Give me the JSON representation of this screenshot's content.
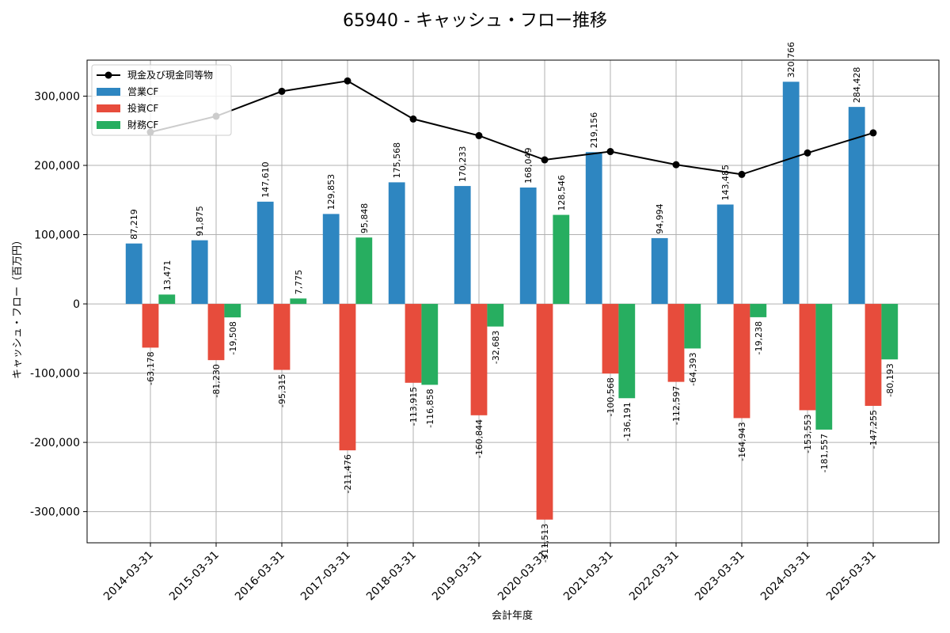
{
  "chart_data": {
    "type": "bar",
    "title": "65940 - キャッシュ・フロー推移",
    "xlabel": "会計年度",
    "ylabel": "キャッシュ・フロー（百万円）",
    "ylim": [
      -345000,
      352000
    ],
    "yticks": [
      -300000,
      -200000,
      -100000,
      0,
      100000,
      200000,
      300000
    ],
    "ytick_labels": [
      "-300,000",
      "-200,000",
      "-100,000",
      "0",
      "100,000",
      "200,000",
      "300,000"
    ],
    "grid": true,
    "legend_position": "top-left",
    "categories": [
      "2014-03-31",
      "2015-03-31",
      "2016-03-31",
      "2017-03-31",
      "2018-03-31",
      "2019-03-31",
      "2020-03-31",
      "2021-03-31",
      "2022-03-31",
      "2023-03-31",
      "2024-03-31",
      "2025-03-31"
    ],
    "series": [
      {
        "name": "営業CF",
        "kind": "bar",
        "color": "#2e86c1",
        "values": [
          87219,
          91875,
          147610,
          129853,
          175568,
          170233,
          168049,
          219156,
          94994,
          143485,
          320766,
          284428
        ],
        "labels": [
          "87,219",
          "91,875",
          "147,610",
          "129,853",
          "175,568",
          "170,233",
          "168,049",
          "219,156",
          "94,994",
          "143,485",
          "320,766",
          "284,428"
        ]
      },
      {
        "name": "投資CF",
        "kind": "bar",
        "color": "#e74c3c",
        "values": [
          -63178,
          -81230,
          -95315,
          -211476,
          -113915,
          -160844,
          -311513,
          -100568,
          -112597,
          -164943,
          -153553,
          -147255
        ],
        "labels": [
          "-63,178",
          "-81,230",
          "-95,315",
          "-211,476",
          "-113,915",
          "-160,844",
          "-311,513",
          "-100,568",
          "-112,597",
          "-164,943",
          "-153,553",
          "-147,255"
        ]
      },
      {
        "name": "財務CF",
        "kind": "bar",
        "color": "#27ae60",
        "values": [
          13471,
          -19508,
          7775,
          95848,
          -116858,
          -32683,
          128546,
          -136191,
          -64393,
          -19238,
          -181557,
          -80193
        ],
        "labels": [
          "13,471",
          "-19,508",
          "7,775",
          "95,848",
          "-116,858",
          "-32,683",
          "128,546",
          "-136,191",
          "-64,393",
          "-19,238",
          "-181,557",
          "-80,193"
        ]
      },
      {
        "name": "現金及び現金同等物",
        "kind": "line",
        "color": "#000000",
        "values": [
          248000,
          271000,
          307000,
          322000,
          267000,
          243000,
          208000,
          220000,
          201000,
          187000,
          218000,
          247000
        ]
      }
    ]
  }
}
